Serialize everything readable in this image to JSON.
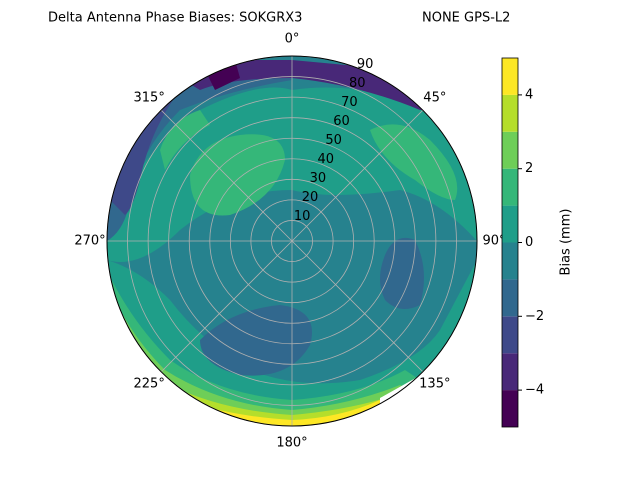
{
  "chart_data": {
    "type": "polar_contour",
    "title": "Delta Antenna Phase Biases: SOKGRX3",
    "subtitle": "NONE GPS-L2",
    "rlim": [
      0,
      90
    ],
    "rticks": [
      10,
      20,
      30,
      40,
      50,
      60,
      70,
      80,
      90
    ],
    "thetaticks": [
      {
        "value": 0,
        "label": "0°"
      },
      {
        "value": 45,
        "label": "45°"
      },
      {
        "value": 90,
        "label": "90°"
      },
      {
        "value": 135,
        "label": "135°"
      },
      {
        "value": 180,
        "label": "180°"
      },
      {
        "value": 225,
        "label": "225°"
      },
      {
        "value": 270,
        "label": "270°"
      },
      {
        "value": 315,
        "label": "315°"
      }
    ],
    "grid": true,
    "colorbar_label": "Bias (mm)",
    "levels": [
      -5,
      -4,
      -3,
      -2,
      -1,
      0,
      1,
      2,
      3,
      4,
      5
    ],
    "colors": [
      "#440154",
      "#482878",
      "#3e4989",
      "#31688e",
      "#26828e",
      "#1f9e89",
      "#35b779",
      "#6ece58",
      "#b5de2b",
      "#fde725"
    ],
    "cticks": [
      {
        "value": -4,
        "label": "−4"
      },
      {
        "value": -2,
        "label": "−2"
      },
      0,
      2,
      4
    ]
  }
}
